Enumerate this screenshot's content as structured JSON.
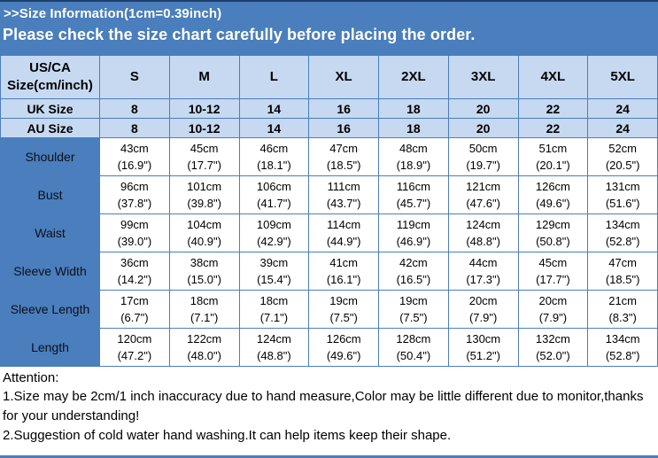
{
  "banner": {
    "title_line": ">>Size Information(1cm=0.39inch)",
    "notice_line": "Please check the size chart carefully before placing the order."
  },
  "colors": {
    "banner_blue": "#4a7ebc",
    "header_light_blue": "#c6d9f1",
    "border_blue": "#4a7ebc",
    "top_edge_navy": "#1d3e6b",
    "text_black": "#000000",
    "banner_text_white": "#ffffff"
  },
  "size_table": {
    "header": [
      "US/CA Size(cm/inch)",
      "S",
      "M",
      "L",
      "XL",
      "2XL",
      "3XL",
      "4XL",
      "5XL"
    ],
    "size_rows": [
      {
        "label": "UK Size",
        "values": [
          "8",
          "10-12",
          "14",
          "16",
          "18",
          "20",
          "22",
          "24"
        ]
      },
      {
        "label": "AU  Size",
        "values": [
          "8",
          "10-12",
          "14",
          "16",
          "18",
          "20",
          "22",
          "24"
        ]
      }
    ],
    "measurement_rows": [
      {
        "label": "Shoulder",
        "cells": [
          {
            "cm": "43cm",
            "in": "(16.9\")"
          },
          {
            "cm": "45cm",
            "in": "(17.7\")"
          },
          {
            "cm": "46cm",
            "in": "(18.1\")"
          },
          {
            "cm": "47cm",
            "in": "(18.5\")"
          },
          {
            "cm": "48cm",
            "in": "(18.9\")"
          },
          {
            "cm": "50cm",
            "in": "(19.7\")"
          },
          {
            "cm": "51cm",
            "in": "(20.1\")"
          },
          {
            "cm": "52cm",
            "in": "(20.5\")"
          }
        ]
      },
      {
        "label": "Bust",
        "cells": [
          {
            "cm": "96cm",
            "in": "(37.8\")"
          },
          {
            "cm": "101cm",
            "in": "(39.8\")"
          },
          {
            "cm": "106cm",
            "in": "(41.7\")"
          },
          {
            "cm": "111cm",
            "in": "(43.7\")"
          },
          {
            "cm": "116cm",
            "in": "(45.7\")"
          },
          {
            "cm": "121cm",
            "in": "(47.6\")"
          },
          {
            "cm": "126cm",
            "in": "(49.6\")"
          },
          {
            "cm": "131cm",
            "in": "(51.6\")"
          }
        ]
      },
      {
        "label": "Waist",
        "cells": [
          {
            "cm": "99cm",
            "in": "(39.0\")"
          },
          {
            "cm": "104cm",
            "in": "(40.9\")"
          },
          {
            "cm": "109cm",
            "in": "(42.9\")"
          },
          {
            "cm": "114cm",
            "in": "(44.9\")"
          },
          {
            "cm": "119cm",
            "in": "(46.9\")"
          },
          {
            "cm": "124cm",
            "in": "(48.8\")"
          },
          {
            "cm": "129cm",
            "in": "(50.8\")"
          },
          {
            "cm": "134cm",
            "in": "(52.8\")"
          }
        ]
      },
      {
        "label": "Sleeve Width",
        "cells": [
          {
            "cm": "36cm",
            "in": "(14.2\")"
          },
          {
            "cm": "38cm",
            "in": "(15.0\")"
          },
          {
            "cm": "39cm",
            "in": "(15.4\")"
          },
          {
            "cm": "41cm",
            "in": "(16.1\")"
          },
          {
            "cm": "42cm",
            "in": "(16.5\")"
          },
          {
            "cm": "44cm",
            "in": "(17.3\")"
          },
          {
            "cm": "45cm",
            "in": "(17.7\")"
          },
          {
            "cm": "47cm",
            "in": "(18.5\")"
          }
        ]
      },
      {
        "label": "Sleeve Length",
        "cells": [
          {
            "cm": "17cm",
            "in": "(6.7\")"
          },
          {
            "cm": "18cm",
            "in": "(7.1\")"
          },
          {
            "cm": "18cm",
            "in": "(7.1\")"
          },
          {
            "cm": "19cm",
            "in": "(7.5\")"
          },
          {
            "cm": "19cm",
            "in": "(7.5\")"
          },
          {
            "cm": "20cm",
            "in": "(7.9\")"
          },
          {
            "cm": "20cm",
            "in": "(7.9\")"
          },
          {
            "cm": "21cm",
            "in": "(8.3\")"
          }
        ]
      },
      {
        "label": "Length",
        "cells": [
          {
            "cm": "120cm",
            "in": "(47.2\")"
          },
          {
            "cm": "122cm",
            "in": "(48.0\")"
          },
          {
            "cm": "124cm",
            "in": "(48.8\")"
          },
          {
            "cm": "126cm",
            "in": "(49.6\")"
          },
          {
            "cm": "128cm",
            "in": "(50.4\")"
          },
          {
            "cm": "130cm",
            "in": "(51.2\")"
          },
          {
            "cm": "132cm",
            "in": "(52.0\")"
          },
          {
            "cm": "134cm",
            "in": "(52.8\")"
          }
        ]
      }
    ]
  },
  "attention": {
    "heading": "Attention:",
    "notes": [
      "1.Size may be 2cm/1 inch inaccuracy due to hand measure,Color may be little different due to monitor,thanks for your understanding!",
      "2.Suggestion of cold water hand washing.It can help items keep their shape."
    ]
  }
}
